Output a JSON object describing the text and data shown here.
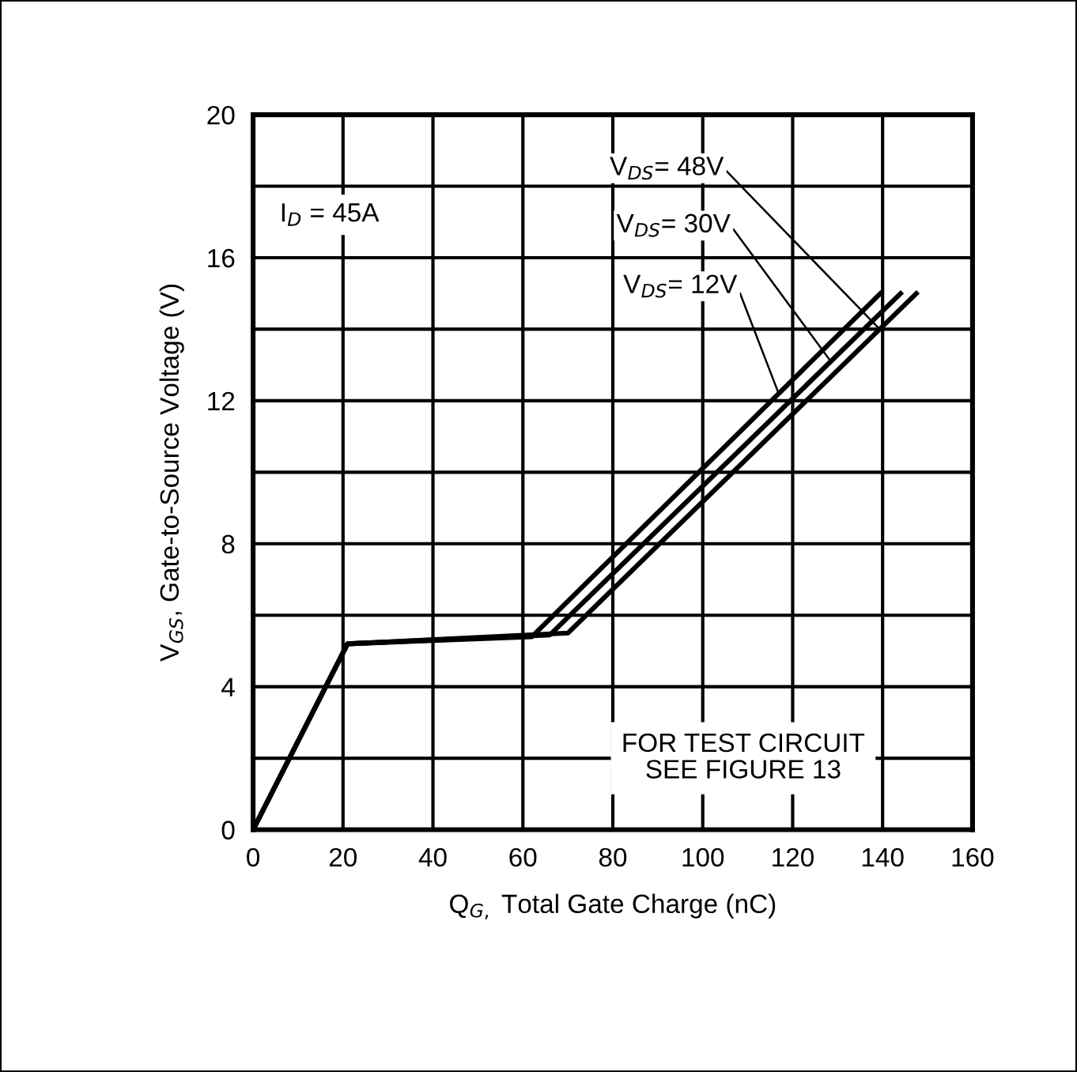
{
  "chart_data": {
    "type": "line",
    "xlabel": "Q$_{G,}$ Total Gate Charge (nC)",
    "ylabel": "V$_{GS}$, Gate-to-Source Voltage (V)",
    "series": [
      {
        "name": "V$_{DS}$= 12V",
        "color": "#000000",
        "x": [
          0,
          21,
          62,
          139.5
        ],
        "values": [
          0,
          5.2,
          5.4,
          15
        ]
      },
      {
        "name": "V$_{DS}$= 30V",
        "color": "#000000",
        "x": [
          0,
          21,
          66,
          144
        ],
        "values": [
          0,
          5.2,
          5.45,
          15
        ]
      },
      {
        "name": "V$_{DS}$= 48V",
        "color": "#000000",
        "x": [
          0,
          21,
          70,
          147.5
        ],
        "values": [
          0,
          5.2,
          5.5,
          15
        ]
      }
    ],
    "annotations": [
      "I$_{D}$ = 45A",
      "FOR TEST CIRCUIT\nSEE FIGURE 13"
    ],
    "xlim": [
      0,
      160
    ],
    "xticks": [
      0,
      20,
      40,
      60,
      80,
      100,
      120,
      140,
      160
    ],
    "ylim": [
      0,
      20
    ],
    "yticks": [
      0,
      {
        "value": 2,
        "label": null
      },
      4,
      {
        "value": 6,
        "label": null
      },
      8,
      {
        "value": 10,
        "label": null
      },
      12,
      {
        "value": 14,
        "label": null
      },
      16,
      {
        "value": 18,
        "label": null
      },
      20
    ],
    "grid": true,
    "marker": "none",
    "line_style": "solid"
  }
}
